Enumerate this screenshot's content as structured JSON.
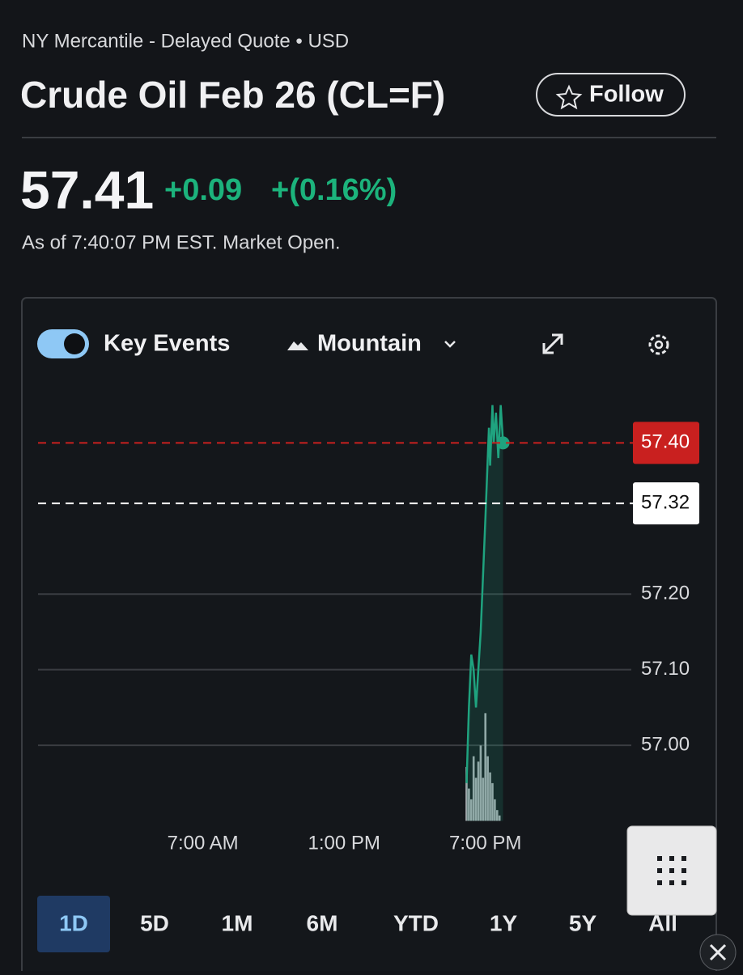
{
  "header": {
    "exchange": "NY Mercantile - Delayed Quote • USD",
    "title": "Crude Oil Feb 26 (CL=F)",
    "follow": "Follow"
  },
  "quote": {
    "price": "57.41",
    "change": "+0.09",
    "change_pct": "+(0.16%)",
    "as_of": "As of 7:40:07 PM EST. Market Open."
  },
  "toolbar": {
    "key_events": "Key Events",
    "chart_type": "Mountain"
  },
  "chart_data": {
    "type": "line",
    "x": [
      18.2,
      18.3,
      18.4,
      18.5,
      18.6,
      18.8,
      19.0,
      19.1,
      19.15,
      19.2,
      19.3,
      19.35,
      19.45,
      19.55,
      19.65,
      19.75
    ],
    "series": [
      {
        "color": "#1fa37f",
        "values": [
          56.95,
          57.05,
          57.12,
          57.1,
          57.05,
          57.15,
          57.3,
          57.38,
          57.42,
          57.37,
          57.45,
          57.4,
          57.44,
          57.38,
          57.45,
          57.4
        ]
      }
    ],
    "volume": {
      "color": "#a9abb0",
      "axis": "y2",
      "x": [
        18.2,
        18.3,
        18.4,
        18.5,
        18.6,
        18.7,
        18.8,
        18.9,
        19.0,
        19.1,
        19.2,
        19.3,
        19.4,
        19.5,
        19.6
      ],
      "values": [
        50,
        30,
        20,
        60,
        40,
        55,
        70,
        40,
        100,
        60,
        45,
        35,
        20,
        10,
        5
      ]
    },
    "xlim": [
      0,
      25.3
    ],
    "ylim": [
      56.9,
      57.47
    ],
    "y2lim": [
      0,
      400
    ],
    "xticks": [
      {
        "value": 7,
        "label": "7:00 AM"
      },
      {
        "value": 13,
        "label": "1:00 PM"
      },
      {
        "value": 19,
        "label": "7:00 PM"
      }
    ],
    "yticks": [
      {
        "value": 57.0,
        "label": "57.00"
      },
      {
        "value": 57.1,
        "label": "57.10"
      },
      {
        "value": 57.2,
        "label": "57.20"
      }
    ],
    "reference_lines": [
      {
        "value": 57.4,
        "label": "57.40",
        "color": "#c9201f"
      },
      {
        "value": 57.32,
        "label": "57.32",
        "color": "#ffffff"
      }
    ],
    "grid": true
  },
  "ranges": {
    "items": [
      "1D",
      "5D",
      "1M",
      "6M",
      "YTD",
      "1Y",
      "5Y",
      "All"
    ],
    "selected": 0
  }
}
